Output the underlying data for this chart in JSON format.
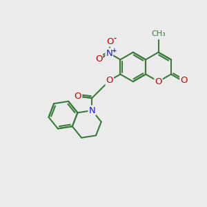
{
  "bg_color": "#ebebeb",
  "bond_color": "#3a7a3a",
  "bond_width": 1.5,
  "atom_colors": {
    "O": "#cc0000",
    "N": "#1a1aee",
    "C": "#3a7a3a"
  },
  "font_size": 9.5
}
